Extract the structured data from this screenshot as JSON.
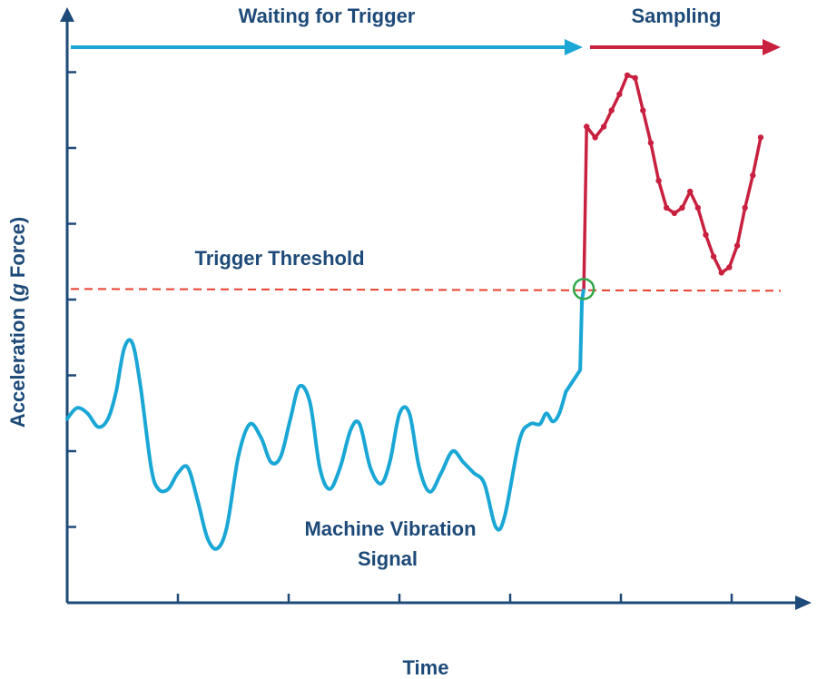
{
  "colors": {
    "axis": "#1d4a78",
    "waiting": "#1aa7d6",
    "sampling": "#c8203f",
    "threshold": "#e8402e",
    "crossing": "#2ea84a",
    "text": "#1d4a78"
  },
  "chart_data": {
    "type": "line",
    "title": "",
    "xlabel": "Time",
    "ylabel_parts": [
      "Acceleration (",
      "g",
      " Force)"
    ],
    "x_ticks": 6,
    "y_ticks": 7,
    "xlim": [
      0,
      100
    ],
    "ylim": [
      0,
      100
    ],
    "phases": [
      {
        "label": "Waiting for Trigger",
        "x_start": 0,
        "x_end": 72
      },
      {
        "label": "Sampling",
        "x_start": 72,
        "x_end": 100
      }
    ],
    "threshold": {
      "label": "Trigger Threshold",
      "y": 58
    },
    "trigger_point": {
      "x": 72.4,
      "y": 58
    },
    "series": [
      {
        "label_lines": [
          "Machine Vibration",
          "Signal"
        ],
        "role": "waiting",
        "values": [
          [
            0.0,
            34
          ],
          [
            1.2,
            36
          ],
          [
            2.5,
            35
          ],
          [
            3.8,
            32.5
          ],
          [
            5.0,
            34
          ],
          [
            6.0,
            39
          ],
          [
            7.0,
            47
          ],
          [
            8.0,
            48
          ],
          [
            9.0,
            40
          ],
          [
            10.3,
            25
          ],
          [
            11.2,
            21
          ],
          [
            12.4,
            21
          ],
          [
            13.6,
            24
          ],
          [
            14.8,
            25
          ],
          [
            16.0,
            19
          ],
          [
            17.2,
            12
          ],
          [
            18.4,
            10
          ],
          [
            19.6,
            14
          ],
          [
            21.0,
            27
          ],
          [
            22.4,
            33
          ],
          [
            23.8,
            30.5
          ],
          [
            25.0,
            26
          ],
          [
            26.2,
            27
          ],
          [
            27.4,
            34
          ],
          [
            28.5,
            40
          ],
          [
            29.8,
            37
          ],
          [
            31.0,
            25
          ],
          [
            32.2,
            21
          ],
          [
            33.5,
            25
          ],
          [
            34.8,
            32
          ],
          [
            35.9,
            33
          ],
          [
            37.2,
            25
          ],
          [
            38.5,
            22
          ],
          [
            39.6,
            26
          ],
          [
            40.8,
            35
          ],
          [
            42.0,
            35
          ],
          [
            43.2,
            25
          ],
          [
            44.5,
            20.5
          ],
          [
            45.9,
            24
          ],
          [
            47.3,
            28
          ],
          [
            48.6,
            26
          ],
          [
            49.9,
            24
          ],
          [
            51.2,
            22
          ],
          [
            52.6,
            14
          ],
          [
            53.7,
            16
          ],
          [
            55.5,
            30
          ],
          [
            56.8,
            33
          ],
          [
            58.0,
            33
          ],
          [
            58.8,
            35
          ],
          [
            59.6,
            33.5
          ],
          [
            60.4,
            35
          ],
          [
            61.2,
            39
          ],
          [
            62.0,
            43
          ],
          [
            63.0,
            56
          ],
          [
            63.4,
            58
          ]
        ]
      },
      {
        "label_lines": [],
        "role": "sampling",
        "values": [
          [
            72.4,
            58
          ],
          [
            72.8,
            88
          ],
          [
            74.0,
            86
          ],
          [
            75.2,
            88
          ],
          [
            76.3,
            91
          ],
          [
            77.4,
            94
          ],
          [
            78.5,
            97.5
          ],
          [
            79.6,
            97
          ],
          [
            80.7,
            91
          ],
          [
            81.8,
            85
          ],
          [
            82.9,
            78
          ],
          [
            84.0,
            73
          ],
          [
            85.1,
            72
          ],
          [
            86.2,
            73
          ],
          [
            87.3,
            76
          ],
          [
            88.4,
            73
          ],
          [
            89.5,
            68
          ],
          [
            90.6,
            64
          ],
          [
            91.7,
            61
          ],
          [
            92.8,
            62
          ],
          [
            93.9,
            66
          ],
          [
            95.0,
            73
          ],
          [
            96.1,
            79
          ],
          [
            97.2,
            86
          ]
        ]
      }
    ]
  }
}
